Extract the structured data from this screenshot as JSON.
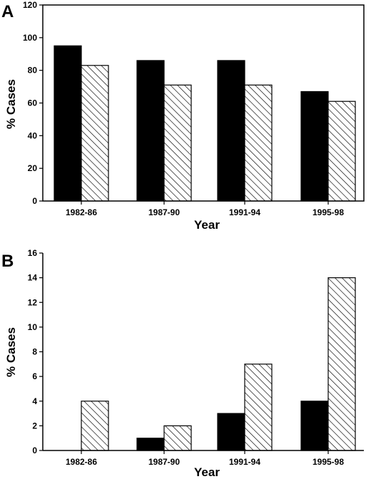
{
  "chart_data": [
    {
      "panel": "A",
      "type": "bar",
      "categories": [
        "1982-86",
        "1987-90",
        "1991-94",
        "1995-98"
      ],
      "series": [
        {
          "style": "solid",
          "color": "#000000",
          "values": [
            95,
            86,
            86,
            67
          ]
        },
        {
          "style": "hatched",
          "color": "#000000",
          "values": [
            83,
            71,
            71,
            61
          ]
        }
      ],
      "xlabel": "Year",
      "ylabel": "% Cases",
      "ylim": [
        0,
        120
      ],
      "yticks": [
        0,
        20,
        40,
        60,
        80,
        100,
        120
      ],
      "grid": false
    },
    {
      "panel": "B",
      "type": "bar",
      "categories": [
        "1982-86",
        "1987-90",
        "1991-94",
        "1995-98"
      ],
      "series": [
        {
          "style": "solid",
          "color": "#000000",
          "values": [
            0,
            1,
            3,
            4
          ]
        },
        {
          "style": "hatched",
          "color": "#000000",
          "values": [
            4,
            2,
            7,
            14
          ]
        }
      ],
      "xlabel": "Year",
      "ylabel": "% Cases",
      "ylim": [
        0,
        16
      ],
      "yticks": [
        0,
        2,
        4,
        6,
        8,
        10,
        12,
        14,
        16
      ],
      "grid": false
    }
  ]
}
